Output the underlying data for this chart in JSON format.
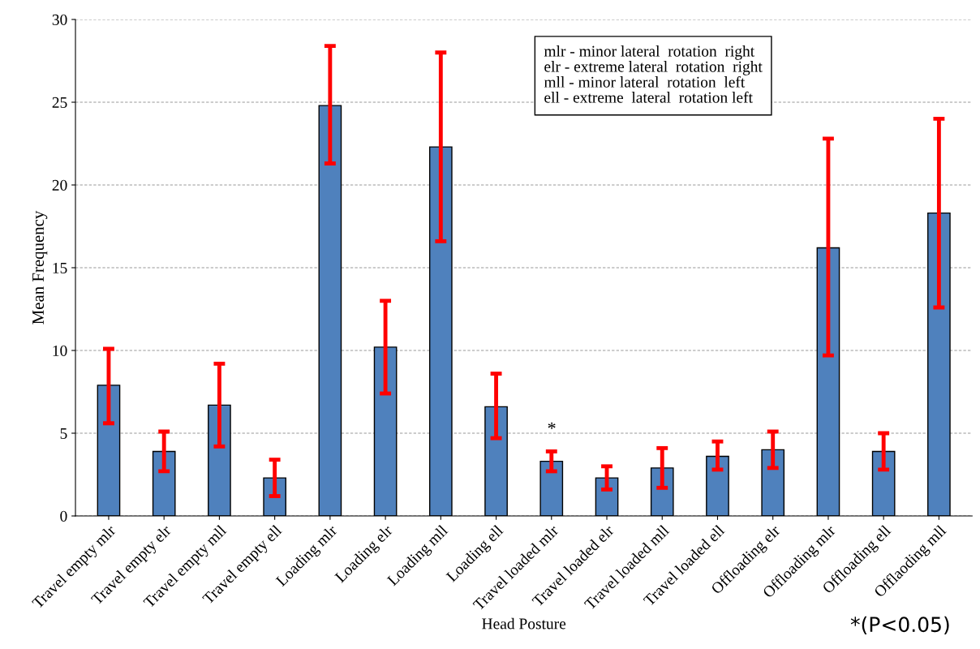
{
  "chart_data": {
    "type": "bar",
    "xlabel": "Head Posture",
    "ylabel": "Mean Frequency",
    "categories": [
      "Travel empty mlr",
      "Travel empty elr",
      "Travel empty mll",
      "Travel empty ell",
      "Loading mlr",
      "Loading elr",
      "Loading mll",
      "Loading ell",
      "Travel loaded mlr",
      "Travel loaded elr",
      "Travel loaded mll",
      "Travel loaded ell",
      "Offloading elr",
      "Offloading mlr",
      "Offloading ell",
      "Offlaoding mll"
    ],
    "values": [
      7.9,
      3.9,
      6.7,
      2.3,
      24.8,
      10.2,
      22.3,
      6.6,
      3.3,
      2.3,
      2.9,
      3.6,
      4.0,
      16.2,
      3.9,
      18.3
    ],
    "errors": [
      [
        5.6,
        10.1
      ],
      [
        2.7,
        5.1
      ],
      [
        4.2,
        9.2
      ],
      [
        1.2,
        3.4
      ],
      [
        21.3,
        28.4
      ],
      [
        7.4,
        13.0
      ],
      [
        16.6,
        28.0
      ],
      [
        4.7,
        8.6
      ],
      [
        2.7,
        3.9
      ],
      [
        1.6,
        3.0
      ],
      [
        1.7,
        4.1
      ],
      [
        2.8,
        4.5
      ],
      [
        2.9,
        5.1
      ],
      [
        9.7,
        22.8
      ],
      [
        2.8,
        5.0
      ],
      [
        12.6,
        24.0
      ]
    ],
    "color": "#4f81bd",
    "ylim": [
      0,
      30
    ],
    "yticks": [
      0,
      5,
      10,
      15,
      20,
      25,
      30
    ],
    "grid": "y",
    "annotations": [
      "*",
      "mlr - minor lateral  rotation  right\nelr - extreme lateral  rotation  right\nmll - minor lateral  rotation  left\nell - extreme  lateral  rotation left",
      "*(P<0.05)"
    ]
  }
}
